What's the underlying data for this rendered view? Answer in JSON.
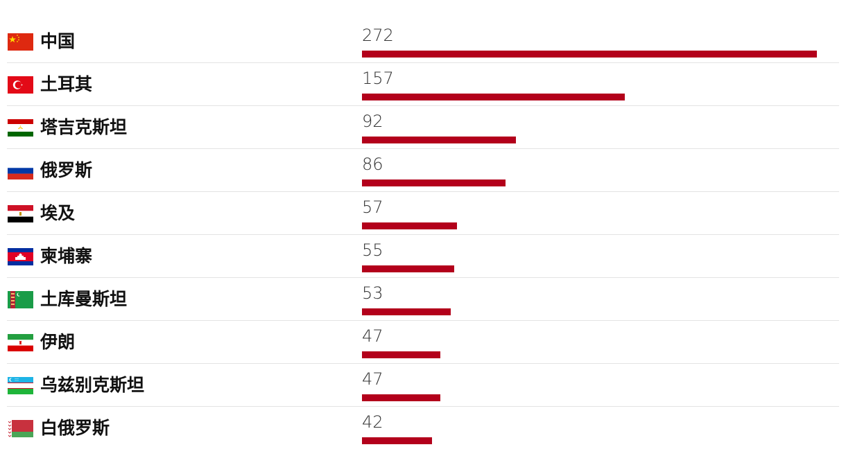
{
  "colors": {
    "bar": "#b3001b",
    "separator": "#e3e3e3",
    "text": "#111111"
  },
  "chart_data": {
    "type": "bar",
    "orientation": "horizontal",
    "xlim": [
      0,
      272
    ],
    "categories": [
      "中国",
      "土耳其",
      "塔吉克斯坦",
      "俄罗斯",
      "埃及",
      "柬埔寨",
      "土库曼斯坦",
      "伊朗",
      "乌兹别克斯坦",
      "白俄罗斯"
    ],
    "values": [
      272,
      157,
      92,
      86,
      57,
      55,
      53,
      47,
      47,
      42
    ],
    "value_labels": [
      "272",
      "157",
      "92",
      "86",
      "57",
      "55",
      "53",
      "47",
      "47",
      "42"
    ],
    "flags": [
      "china-flag-icon",
      "turkey-flag-icon",
      "tajikistan-flag-icon",
      "russia-flag-icon",
      "egypt-flag-icon",
      "cambodia-flag-icon",
      "turkmenistan-flag-icon",
      "iran-flag-icon",
      "uzbekistan-flag-icon",
      "belarus-flag-icon"
    ]
  }
}
